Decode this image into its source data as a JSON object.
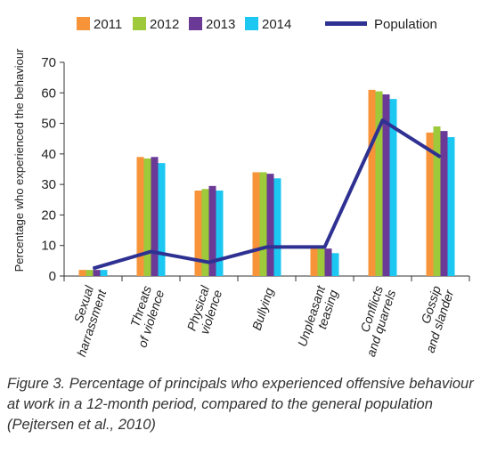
{
  "chart_data": {
    "type": "bar",
    "categories": [
      [
        "Sexual",
        "harrassment"
      ],
      [
        "Threats",
        "of violence"
      ],
      [
        "Physical",
        "violence"
      ],
      [
        "Bullying"
      ],
      [
        "Unpleasant",
        "teasing"
      ],
      [
        "Conflicts",
        "and quarrels"
      ],
      [
        "Gossip",
        "and slander"
      ]
    ],
    "series": [
      {
        "name": "2011",
        "values": [
          2,
          39,
          28,
          34,
          9,
          61,
          47
        ],
        "color": "#F7943A"
      },
      {
        "name": "2012",
        "values": [
          2,
          38.5,
          28.5,
          34,
          9,
          60.5,
          49
        ],
        "color": "#9DC93B"
      },
      {
        "name": "2013",
        "values": [
          2,
          39,
          29.5,
          33.5,
          9,
          59.5,
          47.5
        ],
        "color": "#6A3A96"
      },
      {
        "name": "2014",
        "values": [
          2,
          37,
          28,
          32,
          7.5,
          58,
          45.5
        ],
        "color": "#1CC7F2"
      }
    ],
    "line_series": {
      "name": "Population",
      "values": [
        2.5,
        8,
        4.5,
        9.5,
        9.5,
        51,
        39
      ],
      "color": "#2E3192"
    },
    "ylabel": "Percentage who experienced the behaviour",
    "ylim": [
      0,
      70
    ],
    "yticks": [
      0,
      10,
      20,
      30,
      40,
      50,
      60,
      70
    ],
    "grid": false,
    "legend_position": "top"
  },
  "caption": "Figure 3. Percentage of principals who experienced offensive behaviour at work in a 12-month period, compared to the general population (Pejtersen et al., 2010)"
}
